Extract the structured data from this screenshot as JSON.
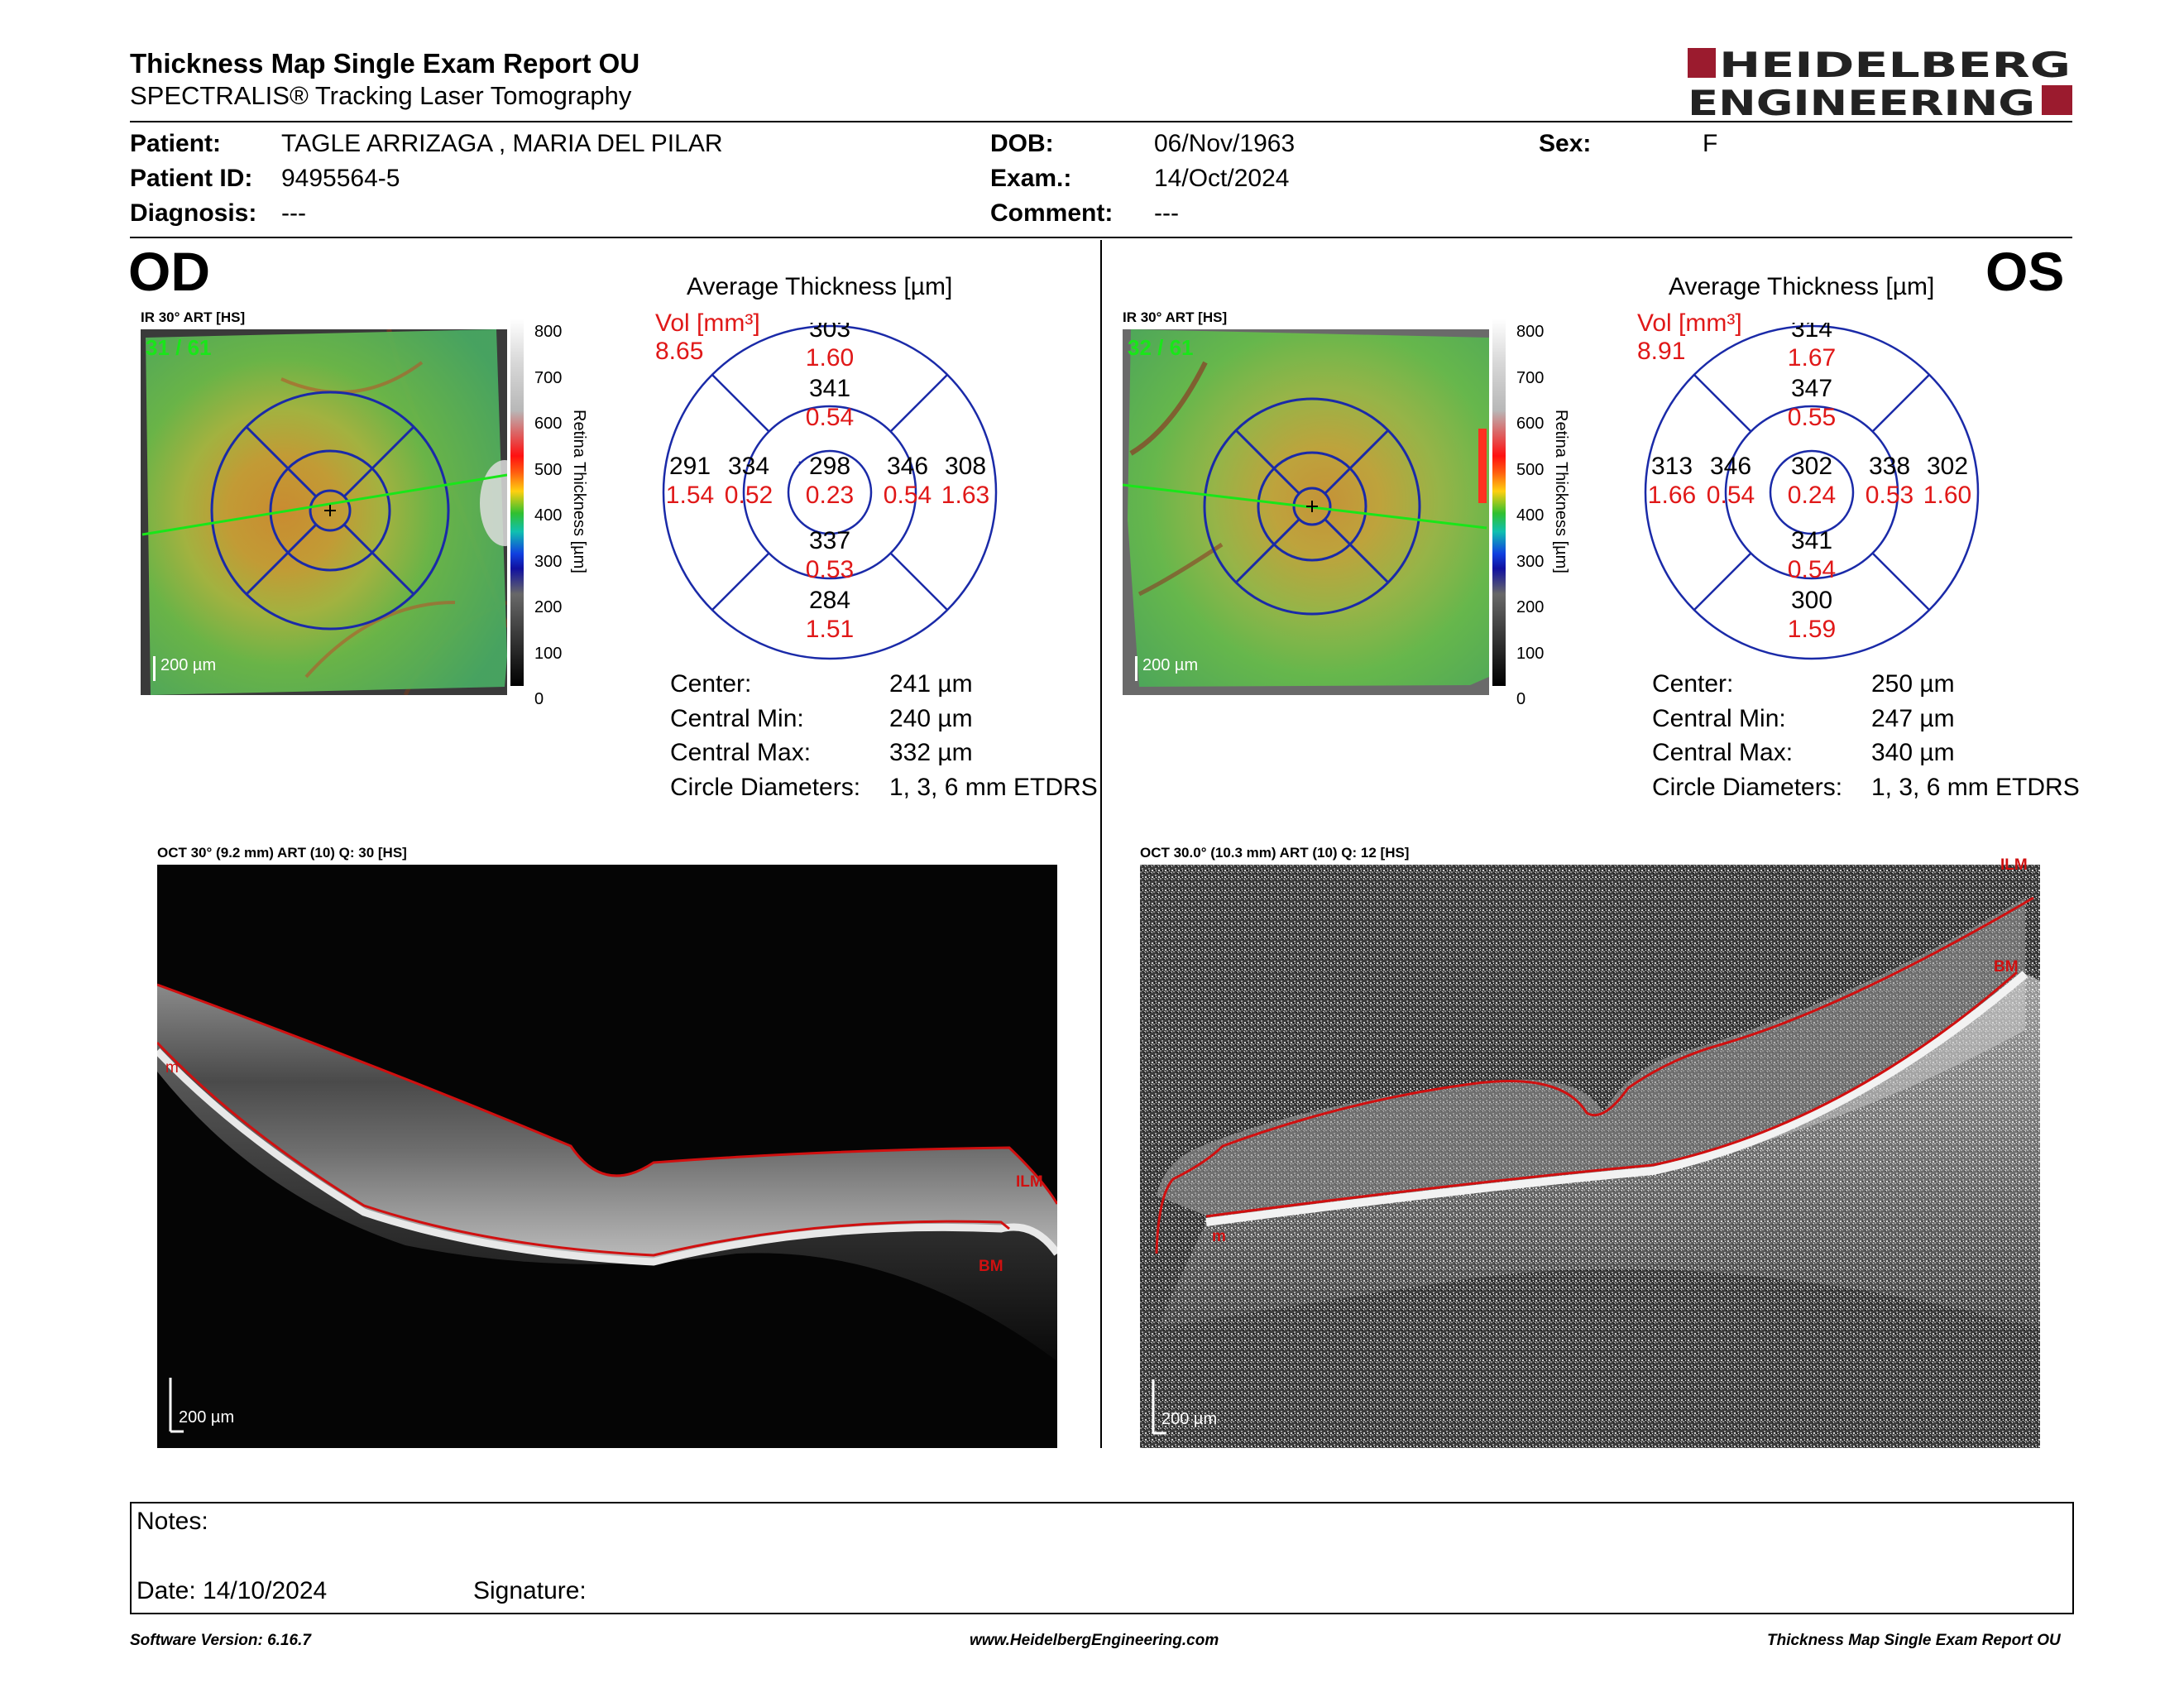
{
  "report": {
    "title": "Thickness Map Single Exam Report OU",
    "subtitle": "SPECTRALIS® Tracking Laser Tomography",
    "logo_line1": "HEIDELBERG",
    "logo_line2": "ENGINEERING"
  },
  "patient": {
    "patient_label": "Patient:",
    "patient_value": "TAGLE ARRIZAGA , MARIA DEL PILAR",
    "id_label": "Patient ID:",
    "id_value": "9495564-5",
    "diagnosis_label": "Diagnosis:",
    "diagnosis_value": "---",
    "dob_label": "DOB:",
    "dob_value": "06/Nov/1963",
    "exam_label": "Exam.:",
    "exam_value": "14/Oct/2024",
    "comment_label": "Comment:",
    "comment_value": "---",
    "sex_label": "Sex:",
    "sex_value": "F"
  },
  "od": {
    "eye": "OD",
    "ir_caption": "IR 30° ART [HS]",
    "frame_count": "31 / 61",
    "scale_label": "200 µm",
    "colorbar_ticks": [
      "800",
      "700",
      "600",
      "500",
      "400",
      "300",
      "200",
      "100",
      "0"
    ],
    "colorbar_title": "Retina  Thickness [µm]",
    "avg_title": "Average Thickness [µm]",
    "vol_label": "Vol [mm³]",
    "vol_total": "8.65",
    "grid": {
      "outer_sup": "303",
      "outer_sup_vol": "1.60",
      "inner_sup": "341",
      "inner_sup_vol": "0.54",
      "outer_temp": "291",
      "outer_temp_vol": "1.54",
      "inner_temp": "334",
      "inner_temp_vol": "0.52",
      "center": "298",
      "center_vol": "0.23",
      "inner_nas": "346",
      "inner_nas_vol": "0.54",
      "outer_nas": "308",
      "outer_nas_vol": "1.63",
      "inner_inf": "337",
      "inner_inf_vol": "0.53",
      "outer_inf": "284",
      "outer_inf_vol": "1.51"
    },
    "stats": {
      "center_label": "Center:",
      "center_value": "241 µm",
      "min_label": "Central Min:",
      "min_value": "240 µm",
      "max_label": "Central Max:",
      "max_value": "332 µm",
      "diam_label": "Circle Diameters:",
      "diam_value": "1, 3, 6 mm ETDRS"
    },
    "oct_caption": "OCT 30° (9.2 mm) ART (10) Q: 30 [HS]",
    "oct_scale": "200 µm",
    "layer_labels": {
      "ilm": "ILM",
      "bm": "BM",
      "m": "m"
    }
  },
  "os": {
    "eye": "OS",
    "ir_caption": "IR 30° ART [HS]",
    "frame_count": "32 / 61",
    "scale_label": "200 µm",
    "colorbar_ticks": [
      "800",
      "700",
      "600",
      "500",
      "400",
      "300",
      "200",
      "100",
      "0"
    ],
    "colorbar_title": "Retina  Thickness [µm]",
    "avg_title": "Average Thickness [µm]",
    "vol_label": "Vol [mm³]",
    "vol_total": "8.91",
    "grid": {
      "outer_sup": "314",
      "outer_sup_vol": "1.67",
      "inner_sup": "347",
      "inner_sup_vol": "0.55",
      "outer_temp": "313",
      "outer_temp_vol": "1.66",
      "inner_temp": "346",
      "inner_temp_vol": "0.54",
      "center": "302",
      "center_vol": "0.24",
      "inner_nas": "338",
      "inner_nas_vol": "0.53",
      "outer_nas": "302",
      "outer_nas_vol": "1.60",
      "inner_inf": "341",
      "inner_inf_vol": "0.54",
      "outer_inf": "300",
      "outer_inf_vol": "1.59"
    },
    "stats": {
      "center_label": "Center:",
      "center_value": "250 µm",
      "min_label": "Central Min:",
      "min_value": "247 µm",
      "max_label": "Central Max:",
      "max_value": "340 µm",
      "diam_label": "Circle Diameters:",
      "diam_value": "1, 3, 6 mm ETDRS"
    },
    "oct_caption": "OCT 30.0° (10.3 mm) ART (10) Q: 12 [HS]",
    "oct_scale": "200 µm",
    "layer_labels": {
      "ilm": "ILM",
      "bm": "BM",
      "m": "m"
    }
  },
  "notes": {
    "notes_label": "Notes:",
    "date_label": "Date: 14/10/2024",
    "signature_label": "Signature:"
  },
  "footer": {
    "software": "Software Version: 6.16.7",
    "website": "www.HeidelbergEngineering.com",
    "report_name": "Thickness Map Single Exam Report OU"
  },
  "colors": {
    "brand_red": "#9b1b2e",
    "volume_red": "#e01818",
    "grid_blue": "#1a2aa8",
    "scan_line_green": "#19e619",
    "layer_red": "#d01010"
  }
}
